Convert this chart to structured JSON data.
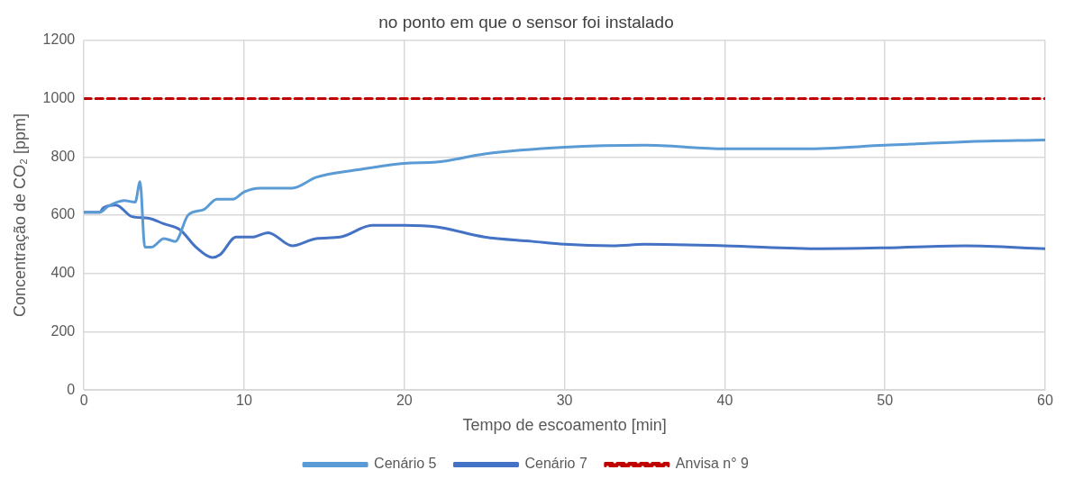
{
  "chart_data": {
    "type": "line",
    "title": "no ponto em que o sensor foi instalado",
    "xlabel": "Tempo de escoamento [min]",
    "ylabel": "Concentração de CO₂ [ppm]",
    "xlim": [
      0,
      60
    ],
    "xticks": [
      0,
      10,
      20,
      30,
      40,
      50,
      60
    ],
    "ylim": [
      0,
      1200
    ],
    "yticks": [
      0,
      200,
      400,
      600,
      800,
      1000,
      1200
    ],
    "grid": true,
    "legend": "bottom",
    "marker": "none",
    "series": [
      {
        "name": "Cenário 5",
        "color": "#5b9bd5",
        "line_style": "solid",
        "x": [
          0,
          1,
          1.5,
          2.5,
          3.2,
          3.5,
          3.8,
          4.2,
          5,
          5.7,
          6.5,
          7.5,
          8.3,
          9.3,
          10,
          11,
          13,
          14.5,
          17,
          20,
          22,
          25,
          30,
          35,
          40,
          45,
          50,
          55,
          60
        ],
        "values": [
          610,
          610,
          630,
          650,
          645,
          715,
          490,
          490,
          520,
          510,
          600,
          620,
          655,
          655,
          680,
          693,
          693,
          730,
          755,
          778,
          782,
          810,
          833,
          840,
          828,
          828,
          840,
          852,
          858
        ]
      },
      {
        "name": "Cenário 7",
        "color": "#4472c4",
        "line_style": "solid",
        "x": [
          0,
          1,
          1.2,
          2,
          3,
          4,
          5,
          6,
          7,
          8,
          8.5,
          9.5,
          10.5,
          11.5,
          13,
          14.5,
          16,
          18,
          20,
          22,
          25,
          28,
          30,
          33,
          35,
          40,
          46,
          50,
          55,
          60
        ],
        "values": [
          610,
          610,
          625,
          635,
          595,
          590,
          570,
          550,
          490,
          455,
          465,
          525,
          525,
          540,
          495,
          520,
          525,
          565,
          565,
          560,
          525,
          510,
          500,
          495,
          500,
          495,
          485,
          488,
          495,
          485
        ]
      },
      {
        "name": "Anvisa n° 9",
        "color": "#c00000",
        "line_style": "dashed",
        "x": [
          0,
          60
        ],
        "values": [
          1000,
          1000
        ]
      }
    ]
  }
}
